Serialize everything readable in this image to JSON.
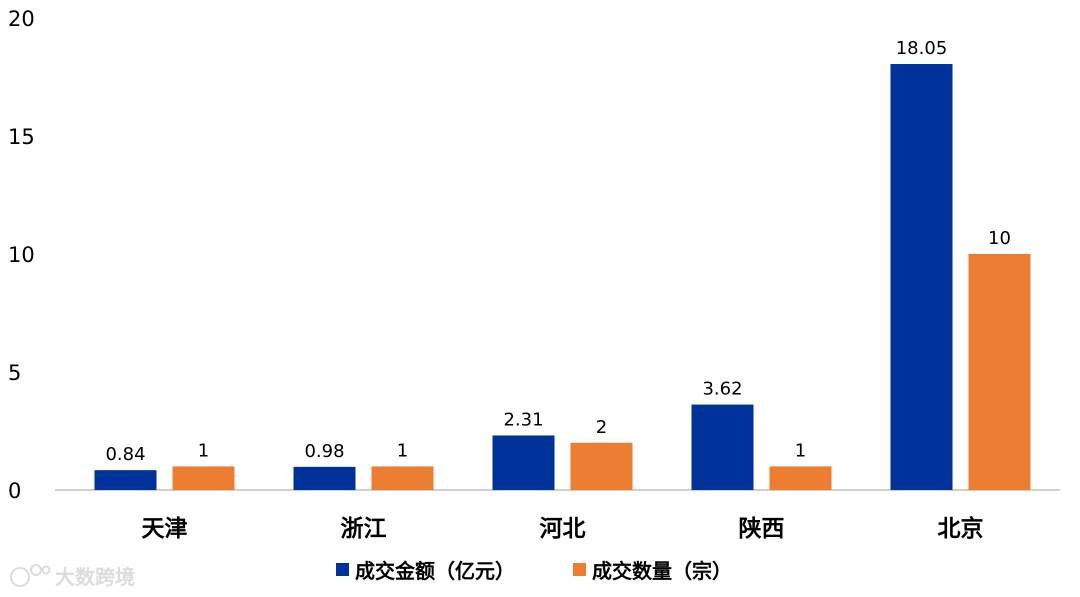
{
  "chart_data": {
    "type": "bar",
    "categories": [
      "天津",
      "浙江",
      "河北",
      "陕西",
      "北京"
    ],
    "series": [
      {
        "name": "成交金额（亿元）",
        "color": "#003399",
        "values": [
          0.84,
          0.98,
          2.31,
          3.62,
          18.05
        ],
        "labels": [
          "0.84",
          "0.98",
          "2.31",
          "3.62",
          "18.05"
        ]
      },
      {
        "name": "成交数量（宗）",
        "color": "#ed7d31",
        "values": [
          1,
          1,
          2,
          1,
          10
        ],
        "labels": [
          "1",
          "1",
          "2",
          "1",
          "10"
        ]
      }
    ],
    "ylim": [
      0,
      20
    ],
    "yticks": [
      "0",
      "5",
      "10",
      "15",
      "20"
    ],
    "grid": false,
    "legend_position": "bottom-center",
    "title": "",
    "xlabel": "",
    "ylabel": ""
  },
  "watermark": {
    "text": "大数跨境",
    "icon": "logo-icon"
  }
}
